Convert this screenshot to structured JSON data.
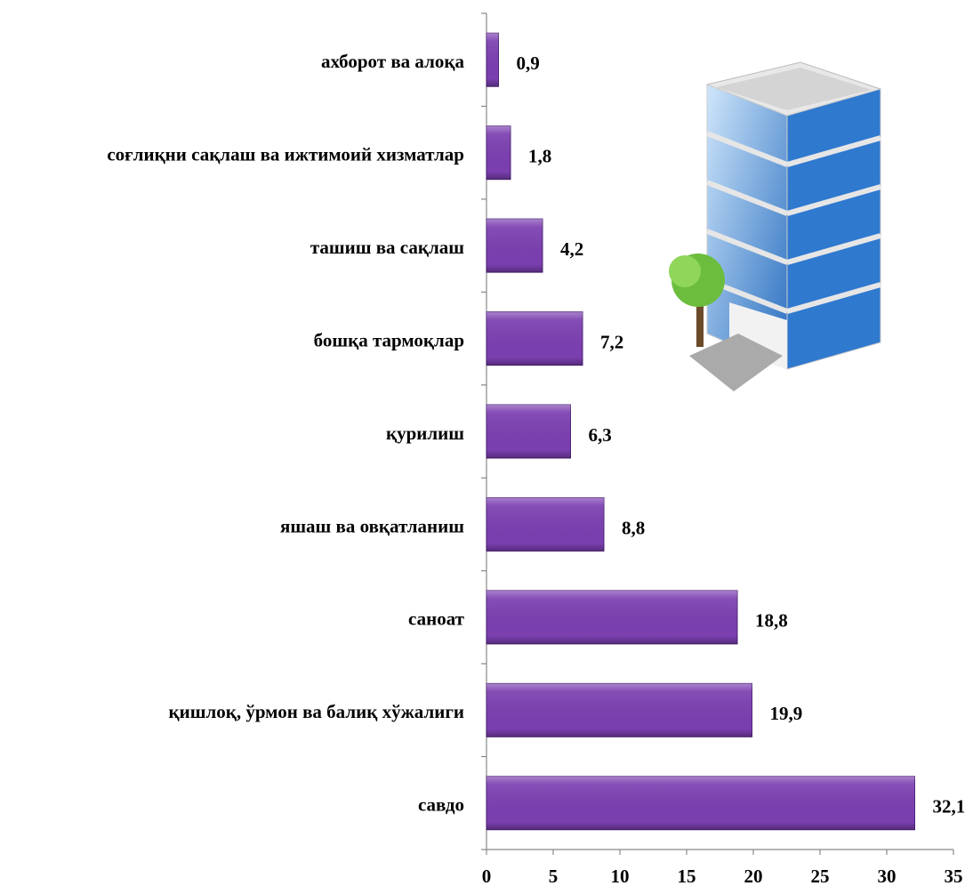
{
  "chart_data": {
    "type": "hbar",
    "categories": [
      "ахборот ва алоқа",
      "соғлиқни сақлаш ва ижтимоий хизматлар",
      "ташиш ва сақлаш",
      "бошқа тармоқлар",
      "қурилиш",
      "яшаш ва овқатланиш",
      "саноат",
      "қишлоқ, ўрмон ва балиқ хўжалиги",
      "савдо"
    ],
    "values": [
      0.9,
      1.8,
      4.2,
      7.2,
      6.3,
      8.8,
      18.8,
      19.9,
      32.1
    ],
    "value_labels": [
      "0,9",
      "1,8",
      "4,2",
      "7,2",
      "6,3",
      "8,8",
      "18,8",
      "19,9",
      "32,1"
    ],
    "color": "#7b3fb0",
    "xlim": [
      0,
      35
    ],
    "xticks": [
      0,
      5,
      10,
      15,
      20,
      25,
      30,
      35
    ]
  }
}
